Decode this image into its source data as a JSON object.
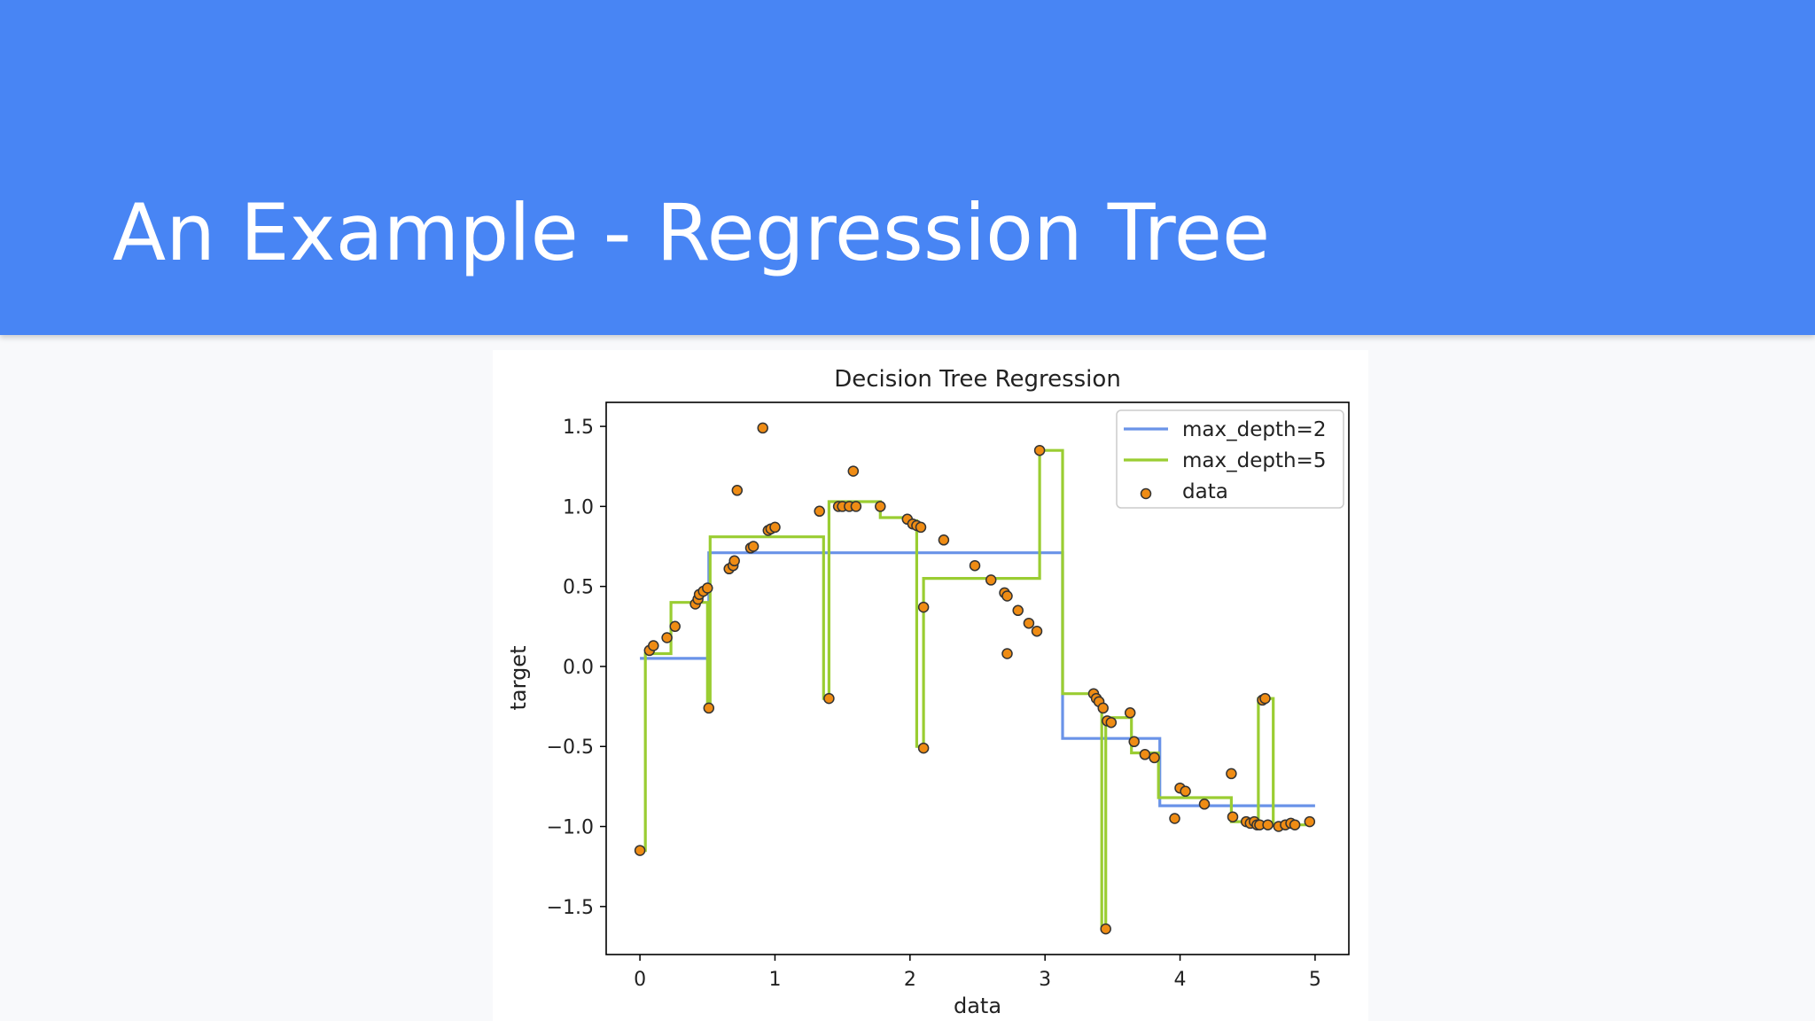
{
  "slide": {
    "title": "An Example - Regression Tree"
  },
  "colors": {
    "header": "#4885f4",
    "depth2": "#6a93e8",
    "depth5": "#9acd32",
    "point_fill": "#ef8c14",
    "point_edge": "#333333"
  },
  "chart_data": {
    "type": "scatter",
    "title": "Decision Tree Regression",
    "xlabel": "data",
    "ylabel": "target",
    "xlim": [
      -0.25,
      5.25
    ],
    "ylim": [
      -1.8,
      1.65
    ],
    "xticks": [
      0,
      1,
      2,
      3,
      4,
      5
    ],
    "xtick_labels": [
      "0",
      "1",
      "2",
      "3",
      "4",
      "5"
    ],
    "yticks": [
      1.5,
      1.0,
      0.5,
      0.0,
      -0.5,
      -1.0,
      -1.5
    ],
    "ytick_labels": [
      "1.5",
      "1.0",
      "0.5",
      "0.0",
      "−0.5",
      "−1.0",
      "−1.5"
    ],
    "grid": false,
    "legend_position": "top-right",
    "series": [
      {
        "name": "max_depth=2",
        "kind": "line",
        "color": "#6a93e8",
        "x": [
          0.0,
          0.51,
          0.51,
          3.13,
          3.13,
          3.85,
          3.85,
          5.0
        ],
        "y": [
          0.05,
          0.05,
          0.71,
          0.71,
          -0.45,
          -0.45,
          -0.87,
          -0.87
        ]
      },
      {
        "name": "max_depth=5",
        "kind": "line",
        "color": "#9acd32",
        "x": [
          0.0,
          0.04,
          0.04,
          0.23,
          0.23,
          0.5,
          0.5,
          0.52,
          0.52,
          1.36,
          1.36,
          1.4,
          1.4,
          1.43,
          1.43,
          1.78,
          1.78,
          1.96,
          1.96,
          2.05,
          2.05,
          2.08,
          2.08,
          2.1,
          2.1,
          2.96,
          2.96,
          3.13,
          3.13,
          3.38,
          3.38,
          3.42,
          3.42,
          3.45,
          3.45,
          3.64,
          3.64,
          3.84,
          3.84,
          4.38,
          4.38,
          4.58,
          4.58,
          4.61,
          4.61,
          4.69,
          4.69,
          4.73,
          4.73,
          4.97
        ],
        "y": [
          -1.15,
          -1.15,
          0.08,
          0.08,
          0.4,
          0.4,
          -0.25,
          -0.25,
          0.81,
          0.81,
          -0.2,
          -0.2,
          1.03,
          1.03,
          1.03,
          1.03,
          0.93,
          0.93,
          0.91,
          0.91,
          -0.5,
          -0.5,
          -0.5,
          -0.5,
          0.55,
          0.55,
          1.35,
          1.35,
          -0.17,
          -0.17,
          -0.22,
          -0.22,
          -1.64,
          -1.64,
          -0.32,
          -0.32,
          -0.54,
          -0.54,
          -0.82,
          -0.82,
          -0.97,
          -0.97,
          -0.2,
          -0.2,
          -0.2,
          -0.2,
          -0.99,
          -0.99,
          -0.99,
          -0.99
        ]
      },
      {
        "name": "data",
        "kind": "scatter",
        "color": "#ef8c14",
        "x": [
          0.0,
          0.07,
          0.1,
          0.2,
          0.26,
          0.41,
          0.43,
          0.44,
          0.47,
          0.5,
          0.51,
          0.66,
          0.69,
          0.7,
          0.72,
          0.82,
          0.84,
          0.91,
          0.95,
          0.97,
          1.0,
          1.33,
          1.4,
          1.47,
          1.5,
          1.55,
          1.58,
          1.6,
          1.78,
          1.98,
          2.02,
          2.05,
          2.08,
          2.1,
          2.1,
          2.25,
          2.48,
          2.6,
          2.7,
          2.72,
          2.72,
          2.8,
          2.88,
          2.94,
          2.96,
          3.36,
          3.38,
          3.4,
          3.43,
          3.45,
          3.46,
          3.49,
          3.63,
          3.66,
          3.74,
          3.81,
          3.96,
          4.0,
          4.04,
          4.18,
          4.38,
          4.39,
          4.49,
          4.52,
          4.55,
          4.57,
          4.59,
          4.61,
          4.63,
          4.65,
          4.73,
          4.78,
          4.82,
          4.85,
          4.96
        ],
        "y": [
          -1.15,
          0.1,
          0.13,
          0.18,
          0.25,
          0.39,
          0.42,
          0.45,
          0.47,
          0.49,
          -0.26,
          0.61,
          0.63,
          0.66,
          1.1,
          0.74,
          0.75,
          1.49,
          0.85,
          0.86,
          0.87,
          0.97,
          -0.2,
          1.0,
          1.0,
          1.0,
          1.22,
          1.0,
          1.0,
          0.92,
          0.89,
          0.88,
          0.87,
          -0.51,
          0.37,
          0.79,
          0.63,
          0.54,
          0.46,
          0.44,
          0.08,
          0.35,
          0.27,
          0.22,
          1.35,
          -0.17,
          -0.2,
          -0.22,
          -0.26,
          -1.64,
          -0.34,
          -0.35,
          -0.29,
          -0.47,
          -0.55,
          -0.57,
          -0.95,
          -0.76,
          -0.78,
          -0.86,
          -0.67,
          -0.94,
          -0.97,
          -0.98,
          -0.97,
          -0.99,
          -0.99,
          -0.21,
          -0.2,
          -0.99,
          -1.0,
          -0.99,
          -0.98,
          -0.99,
          -0.97
        ]
      }
    ]
  }
}
